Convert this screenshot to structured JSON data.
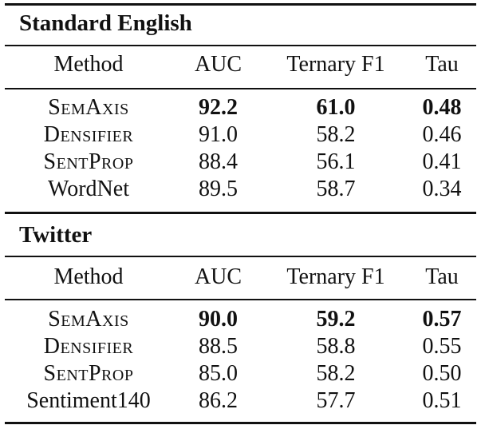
{
  "columns": [
    "Method",
    "AUC",
    "Ternary F1",
    "Tau"
  ],
  "sections": [
    {
      "title": "Standard English",
      "rows": [
        {
          "method": "SemAxis",
          "auc": "92.2",
          "f1": "61.0",
          "tau": "0.48",
          "best": true,
          "small_caps": true
        },
        {
          "method": "Densifier",
          "auc": "91.0",
          "f1": "58.2",
          "tau": "0.46",
          "best": false,
          "small_caps": true
        },
        {
          "method": "SentProp",
          "auc": "88.4",
          "f1": "56.1",
          "tau": "0.41",
          "best": false,
          "small_caps": true
        },
        {
          "method": "WordNet",
          "auc": "89.5",
          "f1": "58.7",
          "tau": "0.34",
          "best": false,
          "small_caps": false
        }
      ]
    },
    {
      "title": "Twitter",
      "rows": [
        {
          "method": "SemAxis",
          "auc": "90.0",
          "f1": "59.2",
          "tau": "0.57",
          "best": true,
          "small_caps": true
        },
        {
          "method": "Densifier",
          "auc": "88.5",
          "f1": "58.8",
          "tau": "0.55",
          "best": false,
          "small_caps": true
        },
        {
          "method": "SentProp",
          "auc": "85.0",
          "f1": "58.2",
          "tau": "0.50",
          "best": false,
          "small_caps": true
        },
        {
          "method": "Sentiment140",
          "auc": "86.2",
          "f1": "57.7",
          "tau": "0.51",
          "best": false,
          "small_caps": false
        }
      ]
    }
  ]
}
